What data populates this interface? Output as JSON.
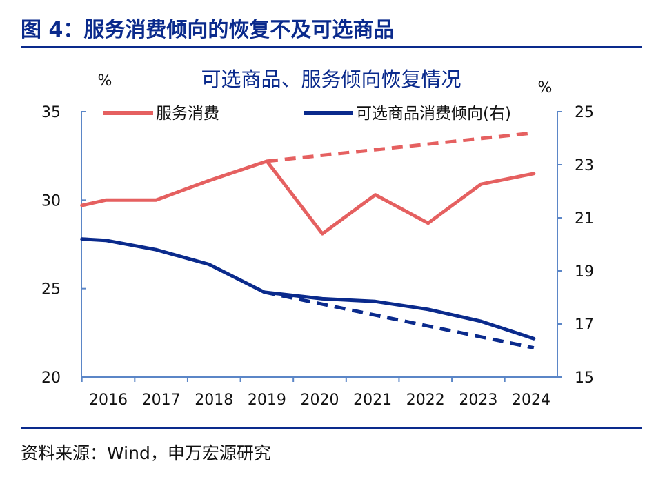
{
  "figure_title": "图 4：服务消费倾向的恢复不及可选商品",
  "source": "资料来源：Wind，申万宏源研究",
  "colors": {
    "brand": "#0a2a8c",
    "service": "#e56060",
    "durable": "#0a2a8c",
    "axis": "#5b86c7"
  },
  "chart_data": {
    "type": "line",
    "title": "可选商品、服务倾向恢复情况",
    "xlabel": "",
    "ylabel_left": "%",
    "ylabel_right": "%",
    "y_left": {
      "lim": [
        20,
        35
      ],
      "ticks": [
        20,
        25,
        30,
        35
      ]
    },
    "y_right": {
      "lim": [
        15,
        25
      ],
      "ticks": [
        15,
        17,
        19,
        21,
        23,
        25
      ]
    },
    "x_ticks": [
      "2016",
      "2017",
      "2018",
      "2019",
      "2020",
      "2021",
      "2022",
      "2023",
      "2024"
    ],
    "grid": false,
    "legend_position": "top",
    "series": [
      {
        "name": "服务消费",
        "axis": "left",
        "style": "solid",
        "color": "#e56060",
        "points": [
          [
            2015.5,
            29.7
          ],
          [
            2015.95,
            30.0
          ],
          [
            2016.9,
            30.0
          ],
          [
            2017.9,
            31.1
          ],
          [
            2019.0,
            32.2
          ],
          [
            2020.05,
            28.1
          ],
          [
            2021.05,
            30.3
          ],
          [
            2022.05,
            28.7
          ],
          [
            2023.05,
            30.9
          ],
          [
            2024.05,
            31.5
          ]
        ]
      },
      {
        "name": "",
        "axis": "left",
        "style": "dashed",
        "color": "#e56060",
        "points": [
          [
            2019.0,
            32.2
          ],
          [
            2024.05,
            33.8
          ]
        ]
      },
      {
        "name": "可选商品消费倾向(右)",
        "axis": "right",
        "style": "solid",
        "color": "#0a2a8c",
        "points": [
          [
            2015.5,
            20.2
          ],
          [
            2015.95,
            20.15
          ],
          [
            2016.9,
            19.8
          ],
          [
            2017.9,
            19.25
          ],
          [
            2018.95,
            18.2
          ],
          [
            2020.05,
            17.95
          ],
          [
            2021.05,
            17.85
          ],
          [
            2022.05,
            17.55
          ],
          [
            2023.05,
            17.1
          ],
          [
            2024.05,
            16.45
          ]
        ]
      },
      {
        "name": "",
        "axis": "right",
        "style": "dashed",
        "color": "#0a2a8c",
        "points": [
          [
            2018.95,
            18.2
          ],
          [
            2024.05,
            16.1
          ]
        ]
      }
    ]
  }
}
